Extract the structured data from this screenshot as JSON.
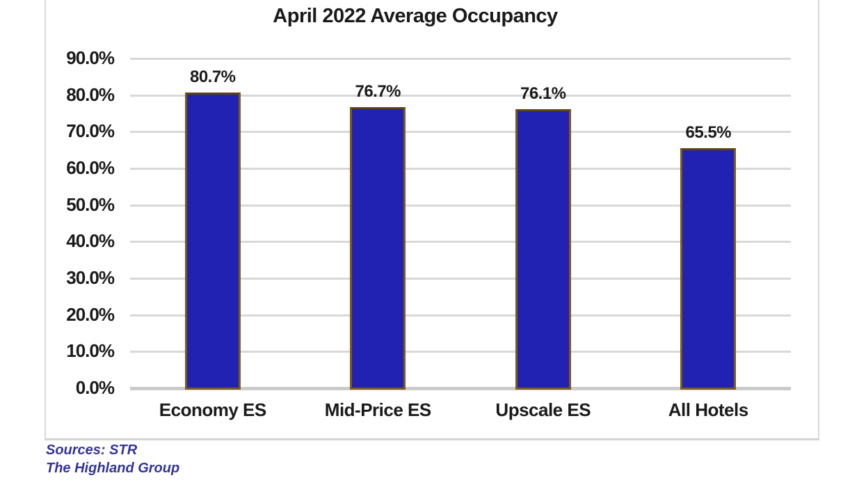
{
  "chart_data": {
    "type": "bar",
    "title": "April 2022 Average Occupancy",
    "categories": [
      "Economy ES",
      "Mid-Price ES",
      "Upscale ES",
      "All Hotels"
    ],
    "values": [
      80.7,
      76.7,
      76.1,
      65.5
    ],
    "value_labels": [
      "80.7%",
      "76.7%",
      "76.1%",
      "65.5%"
    ],
    "xlabel": "",
    "ylabel": "",
    "ylim": [
      0,
      90
    ],
    "ytick_step": 10,
    "ytick_labels": [
      "0.0%",
      "10.0%",
      "20.0%",
      "30.0%",
      "40.0%",
      "50.0%",
      "60.0%",
      "70.0%",
      "80.0%",
      "90.0%"
    ],
    "grid": true,
    "legend": "none",
    "colors": {
      "bar_fill": "#2222B2",
      "bar_border": "#7A5C14",
      "bar_border_top": "#5C4410",
      "gridline": "#D8D8D8",
      "axis_line": "#CBCBCB",
      "text": "#1a1a1a"
    }
  },
  "sources": {
    "line1": "Sources: STR",
    "line2": "The Highland Group",
    "color": "#333399"
  }
}
